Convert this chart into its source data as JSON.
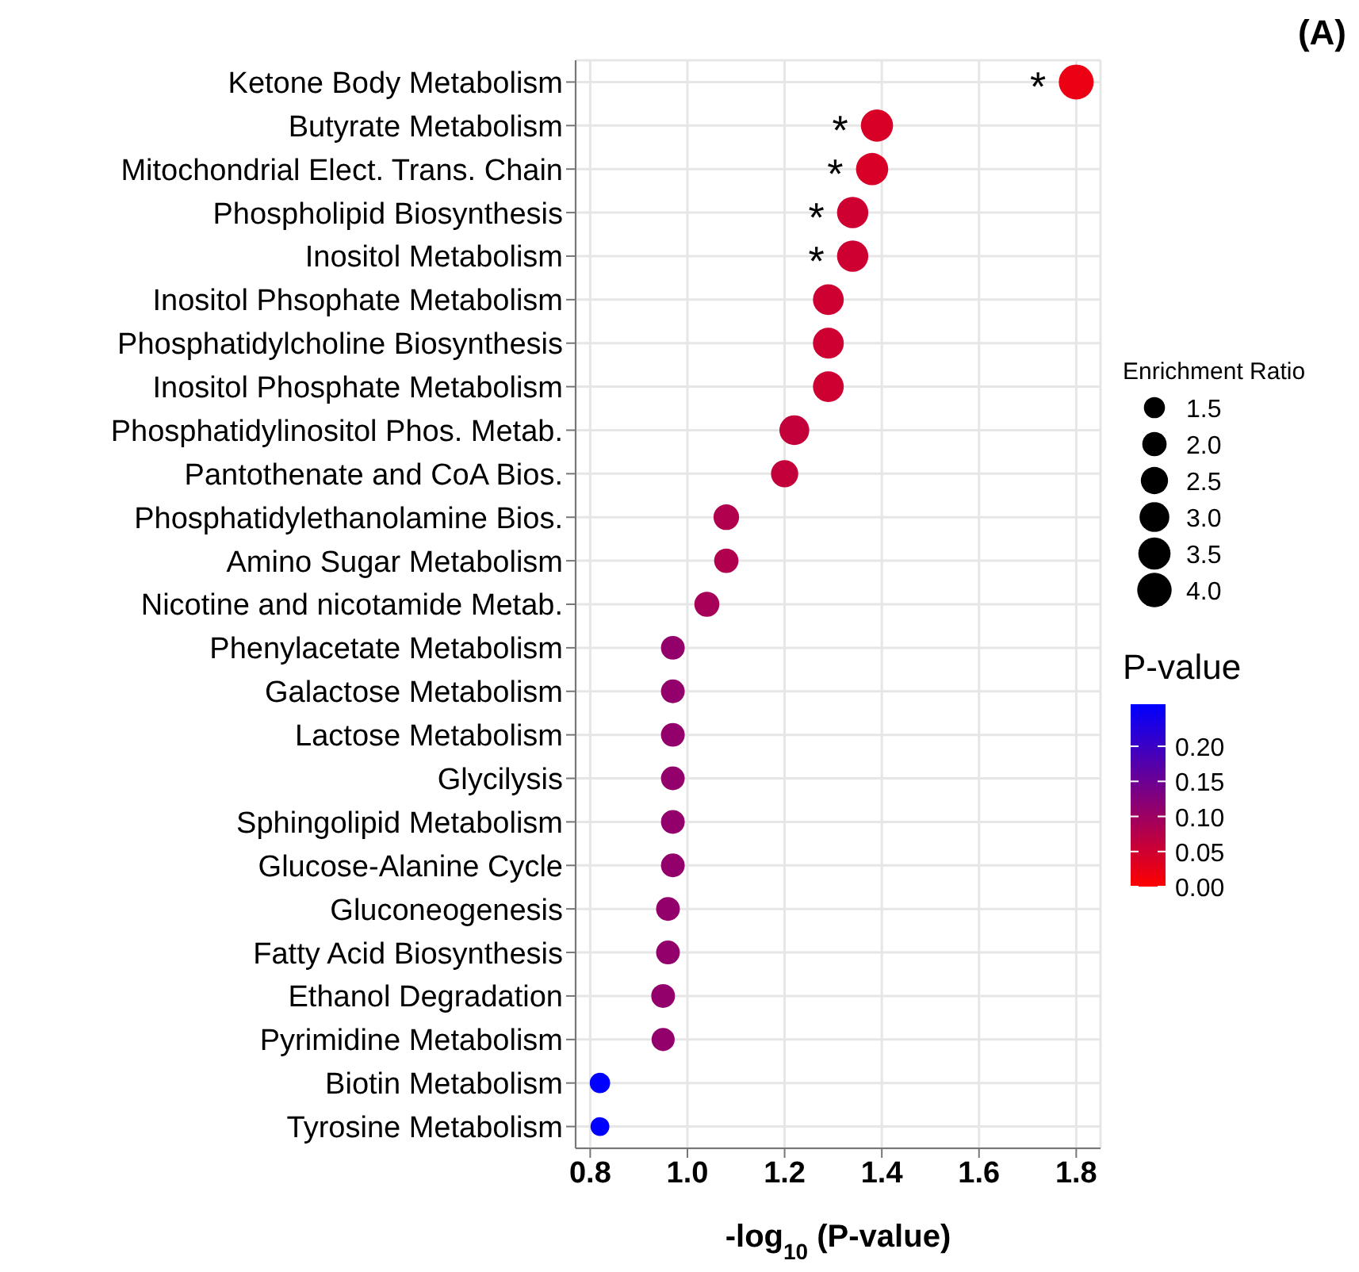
{
  "chart_data": {
    "type": "bubble",
    "orientation": "horizontal",
    "xlabel": "-log$_{10}$ (P-value)",
    "legend_title": "Enrichment Ratio",
    "clabel": "P-value",
    "categories": [
      "Ketone Body Metabolism",
      "Butyrate Metabolism",
      "Mitochondrial Elect. Trans. Chain",
      "Phospholipid Biosynthesis",
      "Inositol Metabolism",
      "Inositol Phsophate Metabolism",
      "Phosphatidylcholine Biosynthesis",
      "Inositol Phosphate Metabolism",
      "Phosphatidylinositol Phos. Metab.",
      "Pantothenate and CoA Bios.",
      "Phosphatidylethanolamine Bios.",
      "Amino Sugar Metabolism",
      "Nicotine and nicotamide Metab.",
      "Phenylacetate Metabolism",
      "Galactose Metabolism",
      "Lactose Metabolism",
      "Glycilysis",
      "Sphingolipid Metabolism",
      "Glucose-Alanine Cycle",
      "Gluconeogenesis",
      "Fatty Acid Biosynthesis",
      "Ethanol Degradation",
      "Pyrimidine Metabolism",
      "Biotin Metabolism",
      "Tyrosine Metabolism"
    ],
    "values": [
      1.8,
      1.39,
      1.38,
      1.34,
      1.34,
      1.29,
      1.29,
      1.29,
      1.22,
      1.2,
      1.08,
      1.08,
      1.04,
      0.97,
      0.97,
      0.97,
      0.97,
      0.97,
      0.97,
      0.96,
      0.96,
      0.95,
      0.95,
      0.82,
      0.82
    ],
    "sizes": [
      4.1,
      3.5,
      3.5,
      3.3,
      3.3,
      3.2,
      3.2,
      3.2,
      3.0,
      2.5,
      2.2,
      2.0,
      2.1,
      1.9,
      1.9,
      1.9,
      1.9,
      1.9,
      1.9,
      1.9,
      1.9,
      1.9,
      1.8,
      1.4,
      1.2
    ],
    "cvalues": [
      0.02,
      0.04,
      0.04,
      0.05,
      0.05,
      0.05,
      0.05,
      0.05,
      0.06,
      0.06,
      0.08,
      0.08,
      0.09,
      0.11,
      0.11,
      0.11,
      0.11,
      0.11,
      0.11,
      0.11,
      0.11,
      0.11,
      0.11,
      0.26,
      0.26
    ],
    "size_legend": [
      {
        "value": 1.5,
        "label": "1.5"
      },
      {
        "value": 2,
        "label": "2.0"
      },
      {
        "value": 2.5,
        "label": "2.5"
      },
      {
        "value": 3,
        "label": "3.0"
      },
      {
        "value": 3.5,
        "label": "3.5"
      },
      {
        "value": 4,
        "label": "4.0"
      }
    ],
    "clim": [
      0,
      0.26
    ],
    "cticks": [
      {
        "value": 0,
        "label": "0.00"
      },
      {
        "value": 0.05,
        "label": "0.05"
      },
      {
        "value": 0.1,
        "label": "0.10"
      },
      {
        "value": 0.15,
        "label": "0.15"
      },
      {
        "value": 0.2,
        "label": "0.20"
      }
    ],
    "xlim": [
      0.77,
      1.85
    ],
    "xticks": [
      {
        "value": 0.8,
        "label": "0.8"
      },
      {
        "value": 1.0,
        "label": "1.0"
      },
      {
        "value": 1.2,
        "label": "1.2"
      },
      {
        "value": 1.4,
        "label": "1.4"
      },
      {
        "value": 1.6,
        "label": "1.6"
      },
      {
        "value": 1.8,
        "label": "1.8"
      }
    ],
    "grid": true,
    "annotations": [
      {
        "text": "*",
        "x": 1.8,
        "y": "Ketone Body Metabolism"
      },
      {
        "text": "*",
        "x": 1.39,
        "y": "Butyrate Metabolism"
      },
      {
        "text": "*",
        "x": 1.38,
        "y": "Mitochondrial Elect. Trans. Chain"
      },
      {
        "text": "*",
        "x": 1.34,
        "y": "Phospholipid Biosynthesis"
      },
      {
        "text": "*",
        "x": 1.34,
        "y": "Inositol Metabolism"
      },
      "(A)"
    ]
  }
}
